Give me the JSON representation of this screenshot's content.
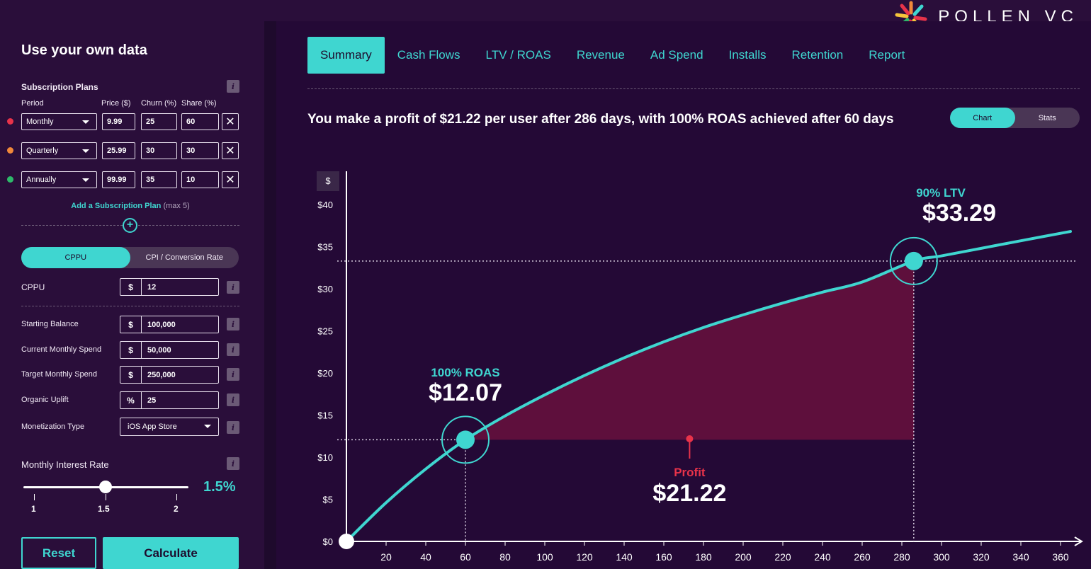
{
  "brand": {
    "name": "POLLEN VC",
    "icon": "starburst-logo-icon"
  },
  "sidebar": {
    "title": "Use your own data",
    "plans_heading": "Subscription Plans",
    "columns": {
      "period": "Period",
      "price": "Price ($)",
      "churn": "Churn (%)",
      "share": "Share (%)"
    },
    "plans": [
      {
        "period": "Monthly",
        "price": "9.99",
        "churn": "25",
        "share": "60",
        "color": "#e8334a"
      },
      {
        "period": "Quarterly",
        "price": "25.99",
        "churn": "30",
        "share": "30",
        "color": "#f0883a"
      },
      {
        "period": "Annually",
        "price": "99.99",
        "churn": "35",
        "share": "10",
        "color": "#2eb86a"
      }
    ],
    "add_plan": "Add a Subscription Plan",
    "add_plan_note": "(max 5)",
    "mode_toggle": {
      "active": "CPPU",
      "inactive": "CPI / Conversion Rate"
    },
    "cppu": {
      "label": "CPPU",
      "unit": "$",
      "value": "12"
    },
    "fields": [
      {
        "label": "Starting Balance",
        "unit": "$",
        "value": "100,000"
      },
      {
        "label": "Current Monthly Spend",
        "unit": "$",
        "value": "50,000"
      },
      {
        "label": "Target Monthly Spend",
        "unit": "$",
        "value": "250,000"
      },
      {
        "label": "Organic Uplift",
        "unit": "%",
        "value": "25"
      }
    ],
    "monetization": {
      "label": "Monetization Type",
      "value": "iOS App Store"
    },
    "interest": {
      "label": "Monthly Interest Rate",
      "value_display": "1.5%",
      "value": 1.5,
      "min": 1,
      "max": 2,
      "ticks": [
        "1",
        "1.5",
        "2"
      ]
    },
    "reset_label": "Reset",
    "calculate_label": "Calculate"
  },
  "tabs": [
    "Summary",
    "Cash Flows",
    "LTV / ROAS",
    "Revenue",
    "Ad Spend",
    "Installs",
    "Retention",
    "Report"
  ],
  "active_tab": "Summary",
  "headline": "You make a profit of $21.22 per user after 286 days, with 100% ROAS achieved after 60 days",
  "view_toggle": {
    "active": "Chart",
    "inactive": "Stats"
  },
  "chart_data": {
    "type": "line",
    "ylabel": "$",
    "xlim": [
      0,
      365
    ],
    "ylim": [
      0,
      42
    ],
    "x_ticks": [
      20,
      40,
      60,
      80,
      100,
      120,
      140,
      160,
      180,
      200,
      220,
      240,
      260,
      280,
      300,
      320,
      340,
      360
    ],
    "y_ticks": [
      {
        "v": 0,
        "label": "$0"
      },
      {
        "v": 5,
        "label": "$5"
      },
      {
        "v": 10,
        "label": "$10"
      },
      {
        "v": 15,
        "label": "$15"
      },
      {
        "v": 20,
        "label": "$20"
      },
      {
        "v": 25,
        "label": "$25"
      },
      {
        "v": 30,
        "label": "$30"
      },
      {
        "v": 35,
        "label": "$35"
      },
      {
        "v": 40,
        "label": "$40"
      }
    ],
    "series": [
      {
        "x": [
          0,
          20,
          40,
          60,
          80,
          100,
          120,
          140,
          160,
          180,
          200,
          220,
          240,
          260,
          286,
          300,
          320,
          340,
          365
        ],
        "y": [
          0,
          4.6,
          8.6,
          12.07,
          14.9,
          17.4,
          19.7,
          21.8,
          23.7,
          25.4,
          26.9,
          28.3,
          29.6,
          30.8,
          33.29,
          33.9,
          34.8,
          35.7,
          36.8
        ]
      }
    ],
    "annotations": {
      "roas": {
        "x": 60,
        "y": 12.07,
        "label": "100% ROAS",
        "value": "$12.07"
      },
      "ltv": {
        "x": 286,
        "y": 33.29,
        "label": "90% LTV",
        "value": "$33.29"
      },
      "profit": {
        "x": 173,
        "label": "Profit",
        "value": "$21.22"
      }
    },
    "colors": {
      "line": "#3fd6d0",
      "profit_area": "#5e0f3c",
      "profit_label": "#e8334a"
    }
  }
}
